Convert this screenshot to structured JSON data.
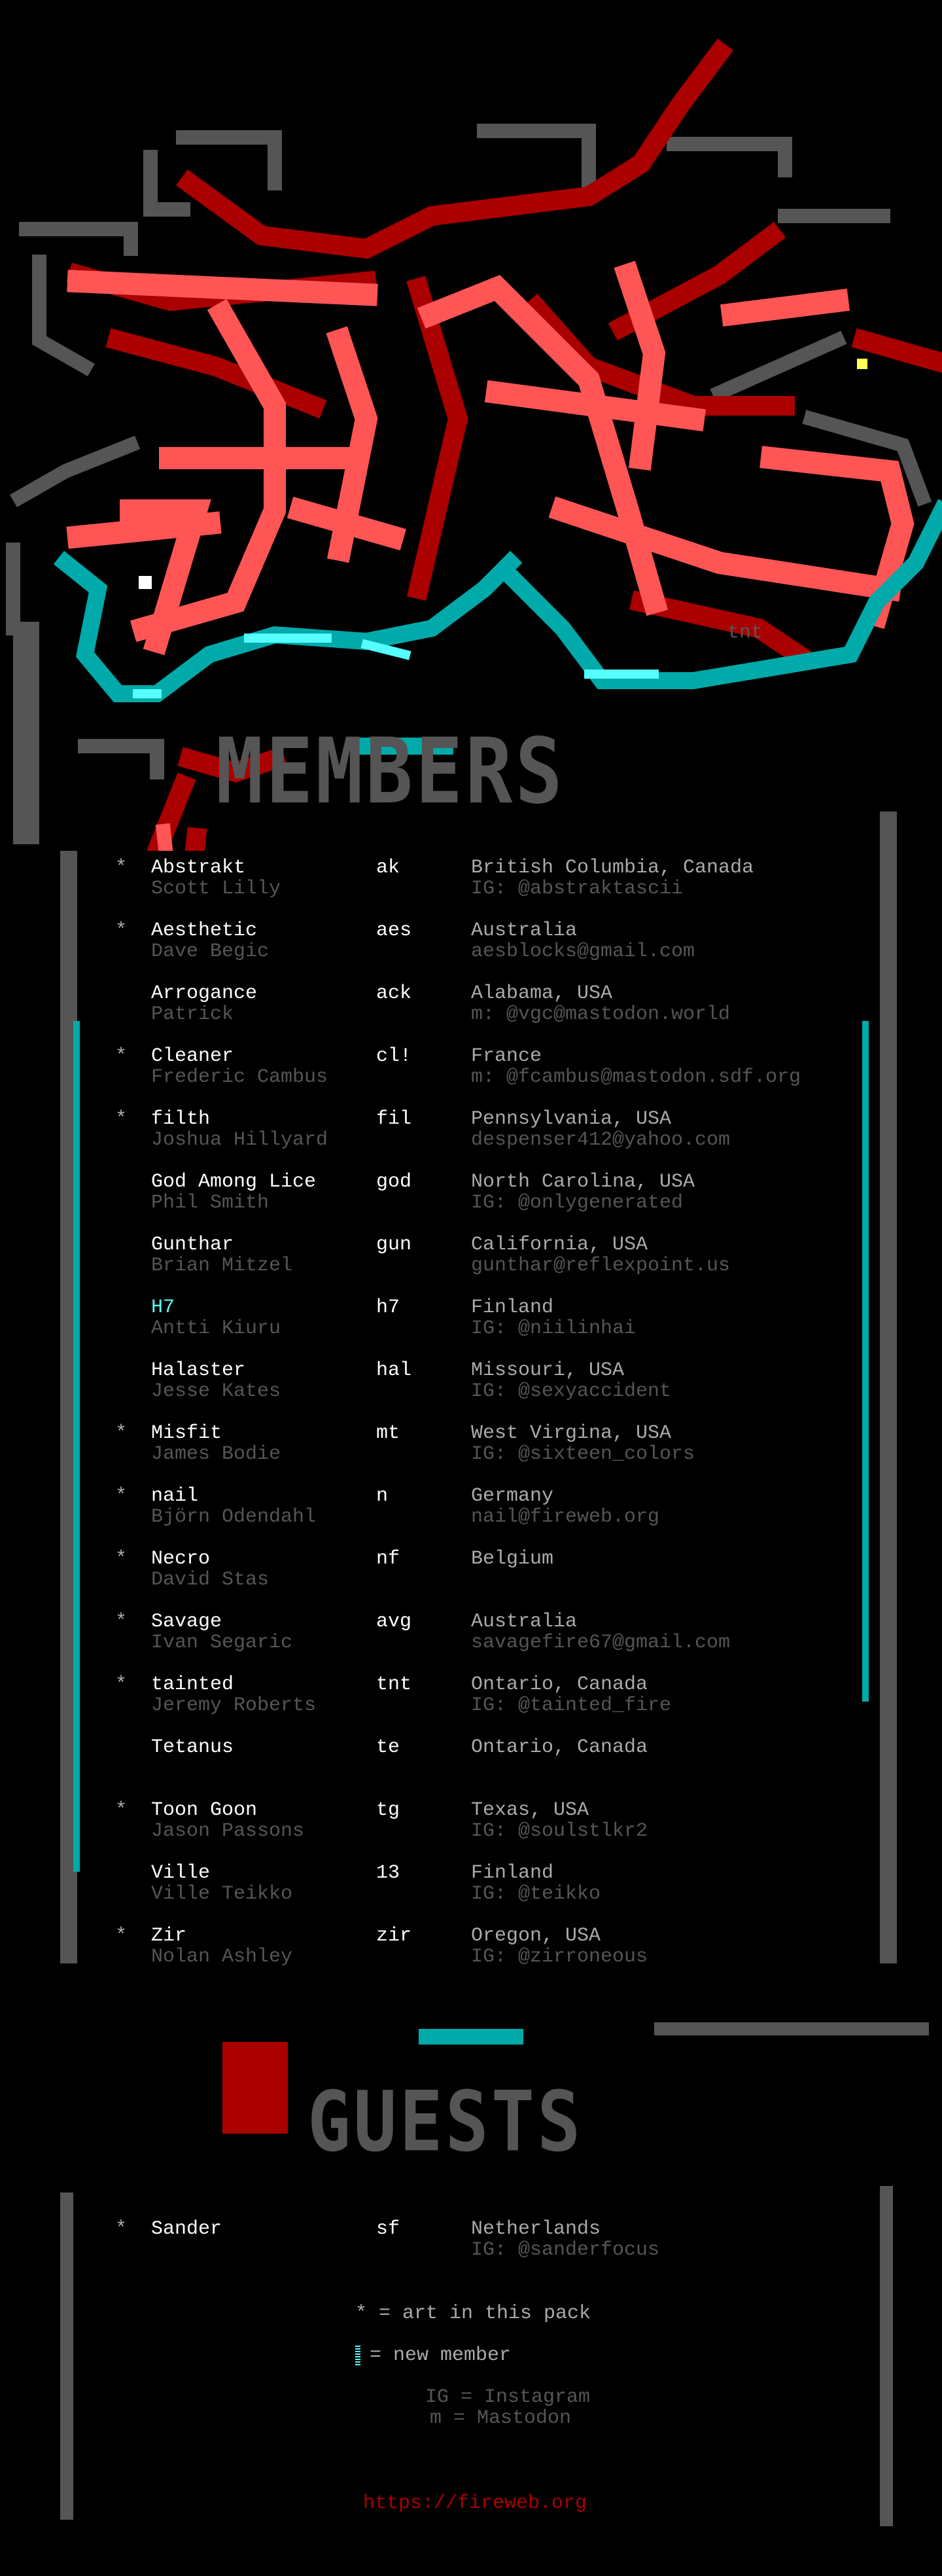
{
  "logo": {
    "signature": "tnt"
  },
  "colors": {
    "bright_red": "#ff5555",
    "dark_red": "#aa0000",
    "cyan": "#00aaaa",
    "bright_cyan": "#55ffff",
    "dark_grey": "#555555",
    "light_grey": "#aaaaaa",
    "white": "#ffffff"
  },
  "sections": {
    "members_title": "MEMBERS",
    "guests_title": "GUESTS"
  },
  "members": [
    {
      "star": "*",
      "name": "Abstrakt",
      "handle": "ak",
      "real": "Scott Lilly",
      "location": "British Columbia, Canada",
      "contact": "IG: @abstraktascii"
    },
    {
      "star": "*",
      "name": "Aesthetic",
      "handle": "aes",
      "real": "Dave Begic",
      "location": "Australia",
      "contact": "aesblocks@gmail.com"
    },
    {
      "star": "",
      "name": "Arrogance",
      "handle": "ack",
      "real": "Patrick",
      "location": "Alabama, USA",
      "contact": "m: @vgc@mastodon.world"
    },
    {
      "star": "*",
      "name": "Cleaner",
      "handle": "cl!",
      "real": "Frederic Cambus",
      "location": "France",
      "contact": "m: @fcambus@mastodon.sdf.org"
    },
    {
      "star": "*",
      "name": "filth",
      "handle": "fil",
      "real": "Joshua Hillyard",
      "location": "Pennsylvania, USA",
      "contact": "despenser412@yahoo.com"
    },
    {
      "star": "",
      "name": "God Among Lice",
      "handle": "god",
      "real": "Phil Smith",
      "location": "North Carolina, USA",
      "contact": "IG: @onlygenerated"
    },
    {
      "star": "",
      "name": "Gunthar",
      "handle": "gun",
      "real": "Brian Mitzel",
      "location": "California, USA",
      "contact": "gunthar@reflexpoint.us"
    },
    {
      "star": "",
      "name": "H7",
      "handle": "h7",
      "real": "Antti Kiuru",
      "location": "Finland",
      "contact": "IG: @niilinhai",
      "new": true
    },
    {
      "star": "",
      "name": "Halaster",
      "handle": "hal",
      "real": "Jesse Kates",
      "location": "Missouri, USA",
      "contact": "IG: @sexyaccident"
    },
    {
      "star": "*",
      "name": "Misfit",
      "handle": "mt",
      "real": "James Bodie",
      "location": "West Virgina, USA",
      "contact": "IG: @sixteen_colors"
    },
    {
      "star": "*",
      "name": "nail",
      "handle": "n",
      "real": "Björn Odendahl",
      "location": "Germany",
      "contact": "nail@fireweb.org"
    },
    {
      "star": "*",
      "name": "Necro",
      "handle": "nf",
      "real": "David Stas",
      "location": "Belgium",
      "contact": ""
    },
    {
      "star": "*",
      "name": "Savage",
      "handle": "avg",
      "real": "Ivan Segaric",
      "location": "Australia",
      "contact": "savagefire67@gmail.com"
    },
    {
      "star": "*",
      "name": "tainted",
      "handle": "tnt",
      "real": "Jeremy Roberts",
      "location": "Ontario, Canada",
      "contact": "IG: @tainted_fire"
    },
    {
      "star": "",
      "name": "Tetanus",
      "handle": "te",
      "real": "",
      "location": "Ontario, Canada",
      "contact": ""
    },
    {
      "star": "*",
      "name": "Toon Goon",
      "handle": "tg",
      "real": "Jason Passons",
      "location": "Texas, USA",
      "contact": "IG: @soulstlkr2"
    },
    {
      "star": "",
      "name": "Ville",
      "handle": "13",
      "real": "Ville Teikko",
      "location": "Finland",
      "contact": "IG: @teikko"
    },
    {
      "star": "*",
      "name": "Zir",
      "handle": "zir",
      "real": "Nolan Ashley",
      "location": "Oregon, USA",
      "contact": "IG: @zirroneous"
    }
  ],
  "guests": [
    {
      "star": "*",
      "name": "Sander",
      "handle": "sf",
      "real": "",
      "location": "Netherlands",
      "contact": "IG: @sanderfocus"
    }
  ],
  "legend": {
    "art": "* = art in this pack",
    "new_member": "= new member",
    "ig": "IG = Instagram",
    "m": "m = Mastodon"
  },
  "footer": {
    "url": "https://fireweb.org"
  }
}
